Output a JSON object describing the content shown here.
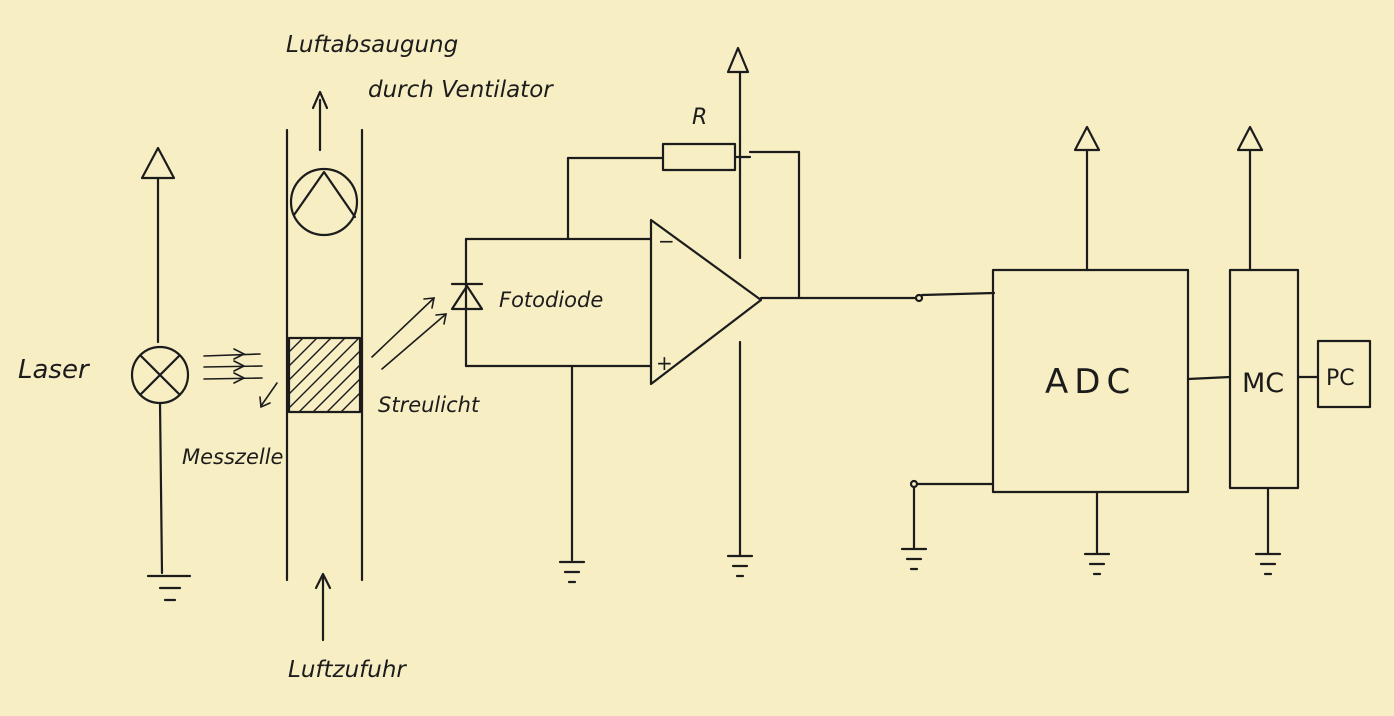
{
  "labels": {
    "laser": "Laser",
    "messzelle": "Messzelle",
    "luftabsaugung_line1": "Luftabsaugung",
    "luftabsaugung_line2": "durch Ventilator",
    "luftzufuhr": "Luftzufuhr",
    "streulicht": "Streulicht",
    "fotodiode": "Fotodiode",
    "resistor": "R",
    "opamp_minus": "−",
    "opamp_plus": "+",
    "adc": "ADC",
    "mc": "MC",
    "pc": "PC"
  },
  "colors": {
    "paper": "#f7eec4",
    "ink": "#1c1c1c"
  }
}
